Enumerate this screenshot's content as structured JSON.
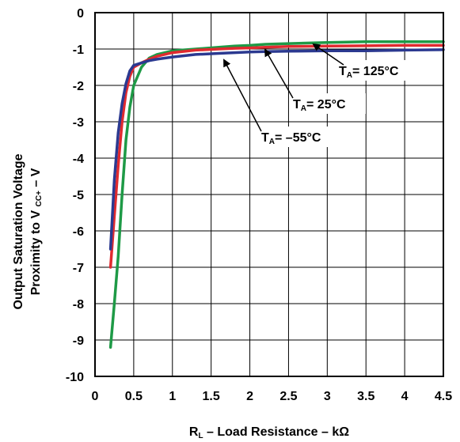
{
  "chart_data": {
    "type": "line",
    "x_ticks": [
      "0",
      "0.5",
      "1",
      "1.5",
      "2",
      "2.5",
      "3",
      "3.5",
      "4",
      "4.5"
    ],
    "y_ticks": [
      "0",
      "-1",
      "-2",
      "-3",
      "-4",
      "-5",
      "-6",
      "-7",
      "-8",
      "-9",
      "-10"
    ],
    "xlim": [
      0,
      4.5
    ],
    "ylim": [
      -10,
      0
    ],
    "grid": true,
    "ylabel_line1": "Output Saturation Voltage",
    "ylabel_line2_prefix": "Proximity to V ",
    "ylabel_line2_sub": "CC+",
    "ylabel_line2_suffix": " – V",
    "xlabel_r": "R",
    "xlabel_sub": "L",
    "xlabel_rest": " – Load Resistance – kΩ",
    "annotation_t": "T",
    "annotation_sub": "A",
    "series": [
      {
        "name": "= 125°C",
        "color": "#1e9a46",
        "x": [
          0.2,
          0.25,
          0.3,
          0.35,
          0.4,
          0.45,
          0.5,
          0.6,
          0.7,
          0.8,
          1.0,
          1.3,
          1.6,
          1.8,
          2.0,
          2.2,
          2.5,
          3.0,
          3.5,
          4.0,
          4.5
        ],
        "y": [
          -9.2,
          -8.0,
          -6.7,
          -5.0,
          -3.5,
          -2.6,
          -2.0,
          -1.5,
          -1.25,
          -1.15,
          -1.05,
          -1.0,
          -0.95,
          -0.92,
          -0.9,
          -0.87,
          -0.85,
          -0.82,
          -0.8,
          -0.8,
          -0.8
        ]
      },
      {
        "name": "= 25°C",
        "color": "#e02a2f",
        "x": [
          0.2,
          0.25,
          0.3,
          0.35,
          0.4,
          0.45,
          0.5,
          0.6,
          0.7,
          0.8,
          1.0,
          1.3,
          1.6,
          1.8,
          2.0,
          2.2,
          2.5,
          3.0,
          3.5,
          4.0,
          4.5
        ],
        "y": [
          -7.0,
          -5.6,
          -4.2,
          -3.0,
          -2.2,
          -1.75,
          -1.5,
          -1.38,
          -1.28,
          -1.2,
          -1.1,
          -1.03,
          -1.0,
          -0.98,
          -0.97,
          -0.95,
          -0.93,
          -0.92,
          -0.91,
          -0.9,
          -0.9
        ]
      },
      {
        "name": "= –55°C",
        "color": "#2b3990",
        "x": [
          0.2,
          0.25,
          0.3,
          0.35,
          0.4,
          0.45,
          0.5,
          0.6,
          0.7,
          0.8,
          1.0,
          1.3,
          1.6,
          1.8,
          2.0,
          2.2,
          2.5,
          3.0,
          3.5,
          4.0,
          4.5
        ],
        "y": [
          -6.5,
          -4.6,
          -3.3,
          -2.5,
          -1.95,
          -1.6,
          -1.45,
          -1.38,
          -1.32,
          -1.28,
          -1.22,
          -1.15,
          -1.12,
          -1.1,
          -1.08,
          -1.07,
          -1.06,
          -1.05,
          -1.05,
          -1.03,
          -1.02
        ]
      }
    ]
  }
}
